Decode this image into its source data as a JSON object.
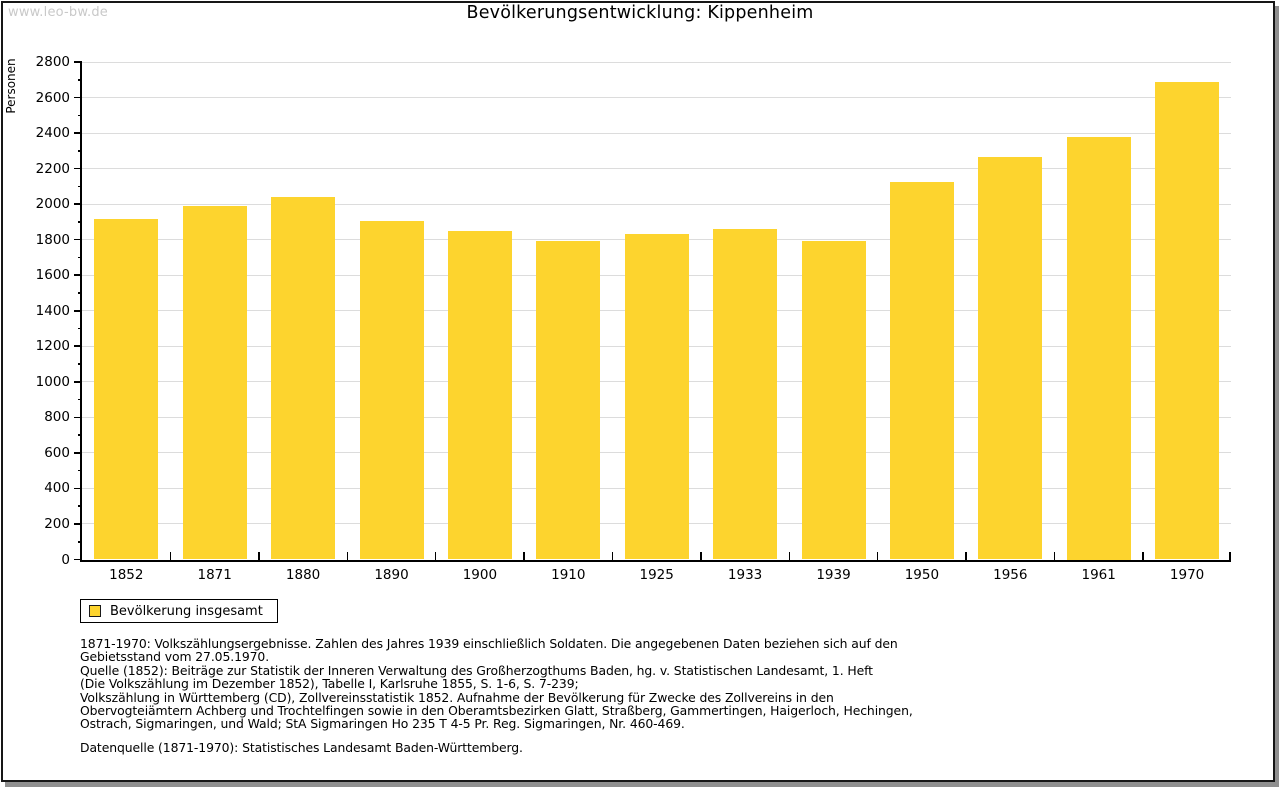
{
  "watermark": "www.leo-bw.de",
  "title": "Bevölkerungsentwicklung: Kippenheim",
  "chart_data": {
    "type": "bar",
    "title": "Bevölkerungsentwicklung: Kippenheim",
    "xlabel": "",
    "ylabel": "Personen",
    "ylim": [
      0,
      2800
    ],
    "ytick_step": 200,
    "ytick_minor_step": 100,
    "grid": true,
    "legend_position": "bottom-left",
    "categories": [
      "1852",
      "1871",
      "1880",
      "1890",
      "1900",
      "1910",
      "1925",
      "1933",
      "1939",
      "1950",
      "1956",
      "1961",
      "1970"
    ],
    "series": [
      {
        "name": "Bevölkerung insgesamt",
        "values": [
          1917,
          1988,
          2042,
          1904,
          1849,
          1791,
          1831,
          1861,
          1795,
          2123,
          2263,
          2380,
          2686
        ]
      }
    ]
  },
  "legend": {
    "label": "Bevölkerung insgesamt"
  },
  "footnotes": [
    "1871-1970: Volkszählungsergebnisse. Zahlen des Jahres 1939 einschließlich Soldaten. Die angegebenen Daten beziehen sich auf den",
    "Gebietsstand vom 27.05.1970.",
    "Quelle (1852): Beiträge zur Statistik der Inneren Verwaltung des Großherzogthums Baden, hg. v. Statistischen Landesamt, 1. Heft",
    "(Die Volkszählung im Dezember 1852), Tabelle I, Karlsruhe 1855, S. 1-6, S. 7-239;",
    "Volkszählung in Württemberg (CD), Zollvereinsstatistik 1852. Aufnahme der Bevölkerung für Zwecke des Zollvereins in den",
    "Obervogteiämtern Achberg und Trochtelfingen sowie in den Oberamtsbezirken Glatt, Straßberg, Gammertingen, Haigerloch, Hechingen,",
    "Ostrach, Sigmaringen, und Wald; StA Sigmaringen Ho 235 T 4-5 Pr. Reg. Sigmaringen, Nr. 460-469."
  ],
  "datasource_note": "Datenquelle (1871-1970): Statistisches Landesamt Baden-Württemberg.",
  "colors": {
    "bar": "#fdd42e",
    "grid": "#dcdcdc",
    "axis": "#000000",
    "watermark": "#c9c9c9",
    "frame": "#161616"
  }
}
